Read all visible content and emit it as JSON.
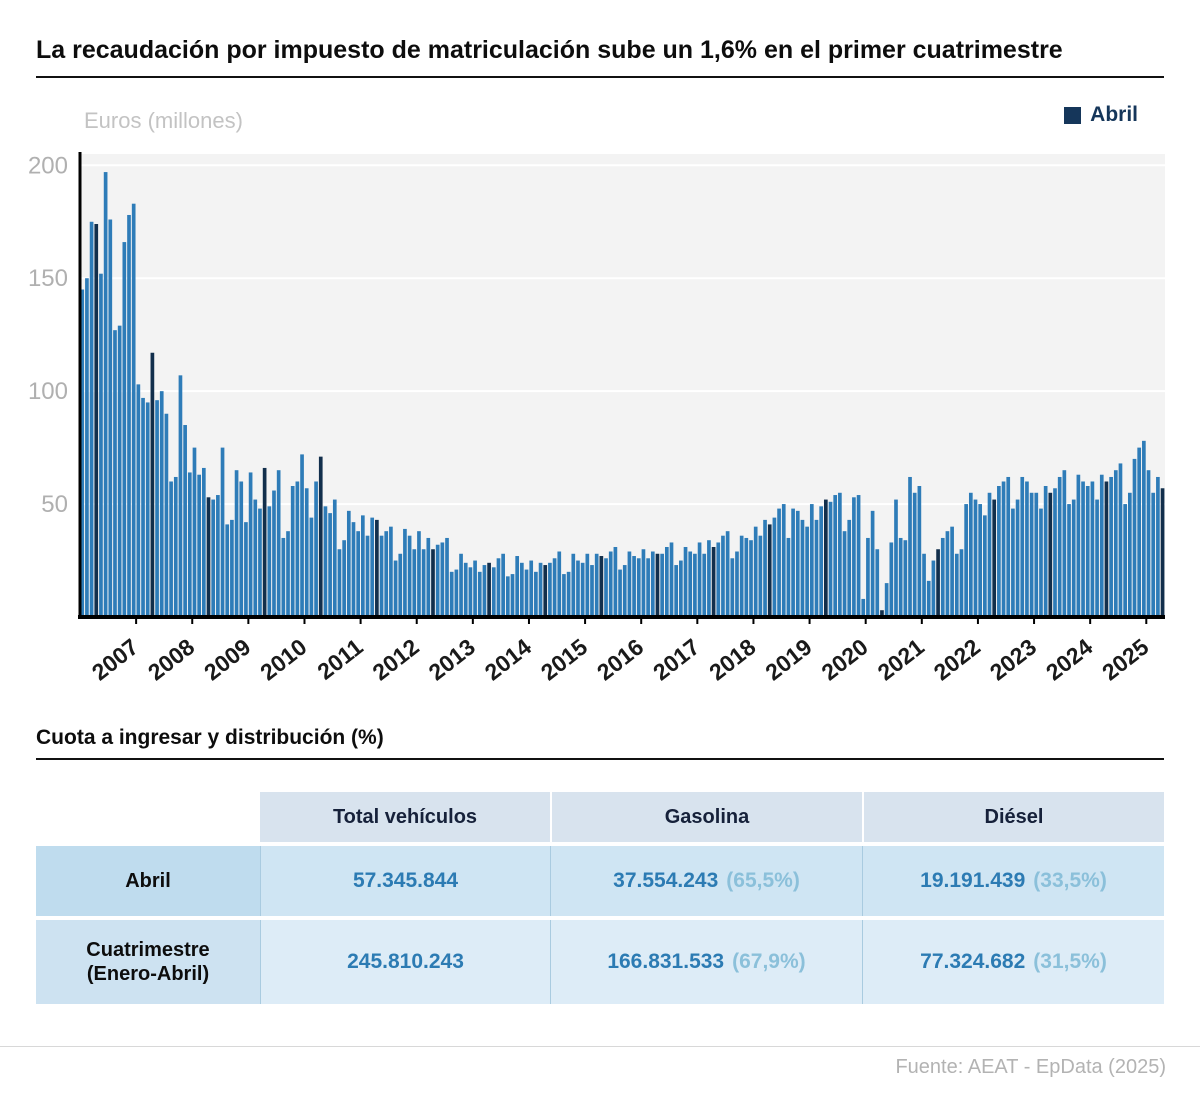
{
  "title": "La recaudación por impuesto de matriculación sube un 1,6% en el primer cuatrimestre",
  "chart_data": {
    "type": "bar",
    "title": "",
    "ylabel": "Euros (millones)",
    "xlabel": "",
    "legend": {
      "label": "Abril",
      "color": "#15365a",
      "position": "top-right"
    },
    "grid": true,
    "ylim": [
      0,
      205
    ],
    "yticks": [
      50,
      100,
      150,
      200
    ],
    "x_tick_labels": [
      "2007",
      "2008",
      "2009",
      "2010",
      "2011",
      "2012",
      "2013",
      "2014",
      "2015",
      "2016",
      "2017",
      "2018",
      "2019",
      "2020",
      "2021",
      "2022",
      "2023",
      "2024",
      "2025"
    ],
    "start_year": 2006,
    "start_month": 1,
    "highlight_month": 4,
    "bar_color": "#2e7cb8",
    "highlight_color": "#122f4c",
    "values": [
      145,
      150,
      175,
      174,
      152,
      197,
      176,
      127,
      129,
      166,
      178,
      183,
      103,
      97,
      95,
      117,
      96,
      100,
      90,
      60,
      62,
      107,
      85,
      64,
      75,
      63,
      66,
      53,
      52,
      54,
      75,
      41,
      43,
      65,
      60,
      42,
      64,
      52,
      48,
      66,
      49,
      56,
      65,
      35,
      38,
      58,
      60,
      72,
      57,
      44,
      60,
      71,
      49,
      46,
      52,
      30,
      34,
      47,
      42,
      38,
      45,
      36,
      44,
      43,
      36,
      38,
      40,
      25,
      28,
      39,
      36,
      30,
      38,
      30,
      35,
      30,
      32,
      33,
      35,
      20,
      21,
      28,
      24,
      22,
      25,
      20,
      23,
      24,
      22,
      26,
      28,
      18,
      19,
      27,
      24,
      21,
      25,
      20,
      24,
      23,
      24,
      26,
      29,
      19,
      20,
      28,
      25,
      24,
      28,
      23,
      28,
      27,
      26,
      29,
      31,
      21,
      23,
      29,
      27,
      26,
      30,
      26,
      29,
      28,
      28,
      31,
      33,
      23,
      25,
      31,
      29,
      28,
      33,
      28,
      34,
      31,
      33,
      36,
      38,
      26,
      29,
      36,
      35,
      34,
      40,
      36,
      43,
      41,
      44,
      48,
      50,
      35,
      48,
      47,
      43,
      40,
      50,
      43,
      49,
      52,
      51,
      54,
      55,
      38,
      43,
      53,
      54,
      8,
      35,
      47,
      30,
      3,
      15,
      33,
      52,
      35,
      34,
      62,
      55,
      58,
      28,
      16,
      25,
      30,
      35,
      38,
      40,
      28,
      30,
      50,
      55,
      52,
      50,
      45,
      55,
      52,
      58,
      60,
      62,
      48,
      52,
      62,
      60,
      55,
      55,
      48,
      58,
      55,
      57,
      62,
      65,
      50,
      52,
      63,
      60,
      58,
      60,
      52,
      63,
      60,
      62,
      65,
      68,
      50,
      55,
      70,
      75,
      78,
      65,
      55,
      62,
      57
    ]
  },
  "table": {
    "section_title": "Cuota a ingresar y distribución (%)",
    "columns": [
      "Total vehículos",
      "Gasolina",
      "Diésel"
    ],
    "rows": [
      {
        "label": "Abril",
        "label2": "",
        "total": "57.345.844",
        "gasolina": "37.554.243",
        "gasolina_pct": "(65,5%)",
        "diesel": "19.191.439",
        "diesel_pct": "(33,5%)"
      },
      {
        "label": "Cuatrimestre",
        "label2": "(Enero-Abril)",
        "total": "245.810.243",
        "gasolina": "166.831.533",
        "gasolina_pct": "(67,9%)",
        "diesel": "77.324.682",
        "diesel_pct": "(31,5%)"
      }
    ]
  },
  "footer": "Fuente: AEAT - EpData (2025)"
}
